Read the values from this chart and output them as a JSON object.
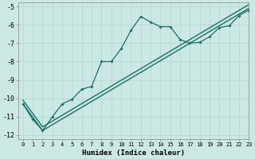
{
  "title": "",
  "xlabel": "Humidex (Indice chaleur)",
  "bg_color": "#cce8e4",
  "grid_color": "#aad4d0",
  "line_color": "#1a6e64",
  "xlim": [
    -0.5,
    23
  ],
  "ylim": [
    -12.2,
    -4.8
  ],
  "xticks": [
    0,
    1,
    2,
    3,
    4,
    5,
    6,
    7,
    8,
    9,
    10,
    11,
    12,
    13,
    14,
    15,
    16,
    17,
    18,
    19,
    20,
    21,
    22,
    23
  ],
  "yticks": [
    -12,
    -11,
    -10,
    -9,
    -8,
    -7,
    -6,
    -5
  ],
  "curve1_x": [
    0,
    1,
    2,
    3,
    4,
    5,
    6,
    7,
    8,
    9,
    10,
    11,
    12,
    13,
    14,
    15,
    16,
    17,
    18,
    19,
    20,
    21,
    22,
    23
  ],
  "curve1_y": [
    -10.3,
    -11.15,
    -11.75,
    -11.0,
    -10.3,
    -10.05,
    -9.5,
    -9.35,
    -8.0,
    -8.0,
    -7.3,
    -6.3,
    -5.55,
    -5.85,
    -6.1,
    -6.1,
    -6.8,
    -7.0,
    -6.95,
    -6.65,
    -6.15,
    -6.05,
    -5.5,
    -5.2
  ],
  "curve2_x": [
    0,
    2,
    23
  ],
  "curve2_y": [
    -10.3,
    -11.75,
    -5.1
  ],
  "curve3_x": [
    0,
    2,
    23
  ],
  "curve3_y": [
    -10.1,
    -11.55,
    -4.9
  ]
}
